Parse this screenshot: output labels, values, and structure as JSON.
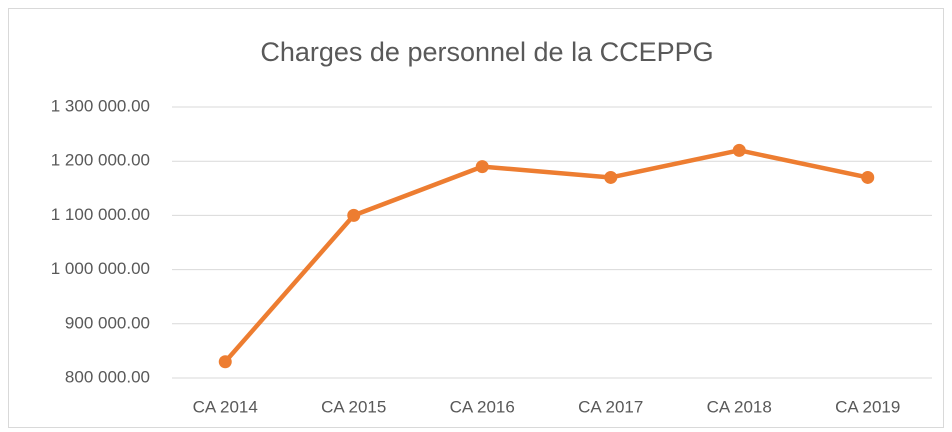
{
  "chart_data": {
    "type": "line",
    "title": "Charges de personnel de la CCEPPG",
    "categories": [
      "CA 2014",
      "CA 2015",
      "CA 2016",
      "CA 2017",
      "CA 2018",
      "CA 2019"
    ],
    "series": [
      {
        "name": "Charges de personnel",
        "color": "#ed7d31",
        "values": [
          830000,
          1100000,
          1190000,
          1170000,
          1220000,
          1170000
        ]
      }
    ],
    "ylim": [
      800000,
      1300000
    ],
    "yticks": [
      {
        "value": 800000,
        "label": "800 000.00"
      },
      {
        "value": 900000,
        "label": "900 000.00"
      },
      {
        "value": 1000000,
        "label": "1 000 000.00"
      },
      {
        "value": 1100000,
        "label": "1 100 000.00"
      },
      {
        "value": 1200000,
        "label": "1 200 000.00"
      },
      {
        "value": 1300000,
        "label": "1 300 000.00"
      }
    ],
    "grid": true
  }
}
